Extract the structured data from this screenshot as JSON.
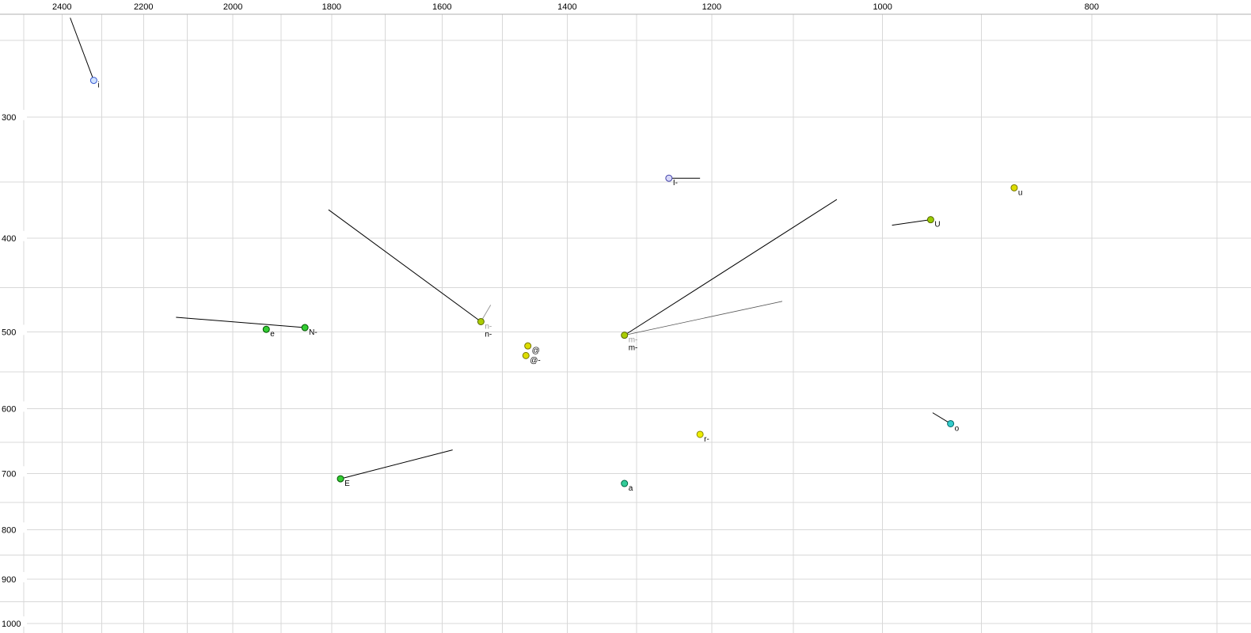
{
  "chart_data": {
    "type": "scatter",
    "title": "",
    "xlabel": "",
    "ylabel": "",
    "grid": true,
    "legend": "none",
    "colors": {
      "background": "#ffffff",
      "grid": "#d8d8d8",
      "axis": "#b0b0b0",
      "tick_text": "#000000"
    },
    "x_axis": {
      "scale": "log",
      "reversed": true,
      "range": [
        2564,
        675
      ],
      "label_ticks": [
        2400,
        2200,
        2000,
        1800,
        1600,
        1400,
        1200,
        1000,
        800
      ],
      "grid_from": 2500,
      "grid_to": 700,
      "grid_step": 100
    },
    "y_axis": {
      "scale": "log",
      "reversed": false,
      "range": [
        235,
        1023
      ],
      "label_ticks": [
        300,
        400,
        500,
        600,
        700,
        800,
        900,
        1000
      ],
      "grid_from": 250,
      "grid_to": 1000,
      "grid_step": 50
    },
    "points": [
      {
        "label": "i",
        "f2": 2320,
        "f1": 275,
        "fill": "#cfe2ff",
        "stroke": "#3b5bd0",
        "labels": [
          {
            "text": "i",
            "color": "#000000"
          }
        ]
      },
      {
        "label": "e",
        "f2": 1930,
        "f1": 497,
        "fill": "#33cc33",
        "stroke": "#005500",
        "labels": [
          {
            "text": "e",
            "color": "#000000"
          }
        ]
      },
      {
        "label": "N-",
        "f2": 1852,
        "f1": 495,
        "fill": "#33cc33",
        "stroke": "#005500",
        "labels": [
          {
            "text": "N-",
            "color": "#000000"
          }
        ]
      },
      {
        "label": "E",
        "f2": 1783,
        "f1": 709,
        "fill": "#33cc33",
        "stroke": "#005500",
        "labels": [
          {
            "text": "E",
            "color": "#000000"
          }
        ]
      },
      {
        "label": "n-",
        "f2": 1535,
        "f1": 488,
        "fill": "#aacc00",
        "stroke": "#556600",
        "labels": [
          {
            "text": "n-",
            "color": "#999999"
          },
          {
            "text": "n-",
            "color": "#000000"
          }
        ]
      },
      {
        "label": "@",
        "f2": 1460,
        "f1": 517,
        "fill": "#dddd00",
        "stroke": "#777700",
        "labels": [
          {
            "text": "@",
            "color": "#000000"
          }
        ]
      },
      {
        "label": "@-",
        "f2": 1463,
        "f1": 529,
        "fill": "#dddd00",
        "stroke": "#777700",
        "labels": [
          {
            "text": "@-",
            "color": "#000000"
          }
        ]
      },
      {
        "label": "m-",
        "f2": 1317,
        "f1": 504,
        "fill": "#aacc00",
        "stroke": "#556600",
        "labels": [
          {
            "text": "m-",
            "color": "#999999"
          },
          {
            "text": "m-",
            "color": "#000000"
          }
        ]
      },
      {
        "label": "I-",
        "f2": 1256,
        "f1": 347,
        "fill": "#d8d8f8",
        "stroke": "#4444aa",
        "labels": [
          {
            "text": "I-",
            "color": "#000000"
          }
        ]
      },
      {
        "label": "r-",
        "f2": 1215,
        "f1": 638,
        "fill": "#eeee00",
        "stroke": "#888800",
        "labels": [
          {
            "text": "r-",
            "color": "#000000"
          }
        ]
      },
      {
        "label": "a",
        "f2": 1317,
        "f1": 717,
        "fill": "#33cc99",
        "stroke": "#006644",
        "labels": [
          {
            "text": "a",
            "color": "#000000"
          }
        ]
      },
      {
        "label": "U",
        "f2": 950,
        "f1": 383,
        "fill": "#99cc00",
        "stroke": "#556600",
        "labels": [
          {
            "text": "U",
            "color": "#000000"
          }
        ]
      },
      {
        "label": "u",
        "f2": 869,
        "f1": 355,
        "fill": "#dddd00",
        "stroke": "#777700",
        "labels": [
          {
            "text": "u",
            "color": "#000000"
          }
        ]
      },
      {
        "label": "o",
        "f2": 930,
        "f1": 622,
        "fill": "#33cccc",
        "stroke": "#006666",
        "labels": [
          {
            "text": "o",
            "color": "#000000"
          }
        ]
      }
    ],
    "vectors": [
      {
        "from": {
          "f2": 2379,
          "f1": 237
        },
        "to": {
          "f2": 2320,
          "f1": 275
        },
        "color": "#000000",
        "width": 1
      },
      {
        "from": {
          "f2": 2125,
          "f1": 483
        },
        "to": {
          "f2": 1852,
          "f1": 495
        },
        "color": "#000000",
        "width": 1
      },
      {
        "from": {
          "f2": 1783,
          "f1": 709
        },
        "to": {
          "f2": 1582,
          "f1": 662
        },
        "color": "#000000",
        "width": 1
      },
      {
        "from": {
          "f2": 1806,
          "f1": 374
        },
        "to": {
          "f2": 1535,
          "f1": 488
        },
        "color": "#000000",
        "width": 1
      },
      {
        "from": {
          "f2": 1535,
          "f1": 488
        },
        "to": {
          "f2": 1519,
          "f1": 469
        },
        "color": "#999999",
        "width": 1
      },
      {
        "from": {
          "f2": 1317,
          "f1": 504
        },
        "to": {
          "f2": 1050,
          "f1": 365
        },
        "color": "#000000",
        "width": 1
      },
      {
        "from": {
          "f2": 1317,
          "f1": 504
        },
        "to": {
          "f2": 1113,
          "f1": 465
        },
        "color": "#555555",
        "width": 0.8
      },
      {
        "from": {
          "f2": 1256,
          "f1": 347
        },
        "to": {
          "f2": 1215,
          "f1": 347
        },
        "color": "#000000",
        "width": 1
      },
      {
        "from": {
          "f2": 990,
          "f1": 388
        },
        "to": {
          "f2": 950,
          "f1": 383
        },
        "color": "#000000",
        "width": 1
      },
      {
        "from": {
          "f2": 948,
          "f1": 606
        },
        "to": {
          "f2": 930,
          "f1": 622
        },
        "color": "#000000",
        "width": 1
      }
    ]
  }
}
